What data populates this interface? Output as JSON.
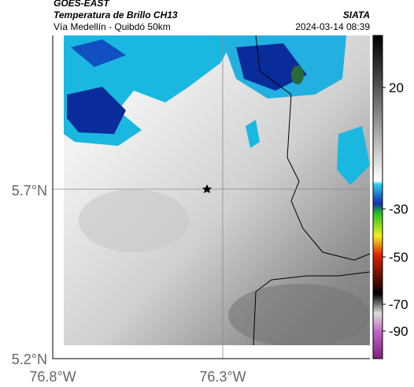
{
  "header": {
    "title": "GOES-EAST",
    "subtitle": "Temperatura de Brillo CH13",
    "route": "Vía Medellín - Quibdó 50km",
    "source": "SIATA",
    "timestamp": "2024-03-14 08:39"
  },
  "map": {
    "lat_labels": [
      "5.7°N",
      "5.2°N"
    ],
    "lon_labels": [
      "76.8°W",
      "76.3°W"
    ]
  },
  "colorbar": {
    "labels": [
      "20",
      "-30",
      "-50",
      "-70",
      "-90"
    ]
  }
}
